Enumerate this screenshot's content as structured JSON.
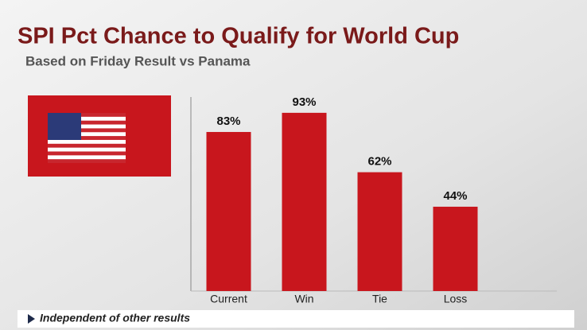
{
  "chart_data": {
    "type": "bar",
    "title": "SPI Pct Chance to Qualify for World Cup",
    "subtitle": "Based on Friday Result vs Panama",
    "categories": [
      "Current",
      "Win",
      "Tie",
      "Loss"
    ],
    "values": [
      83,
      93,
      62,
      44
    ],
    "value_labels": [
      "83%",
      "93%",
      "62%",
      "44%"
    ],
    "color": "#c8161d",
    "ylim": [
      0,
      100
    ],
    "footnote": "Independent of other results"
  }
}
